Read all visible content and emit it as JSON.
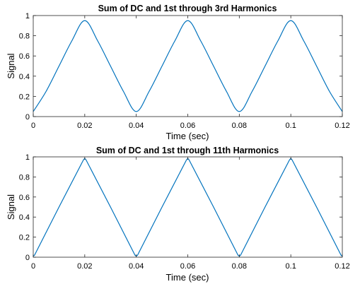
{
  "colors": {
    "line": "#0072BD",
    "axis": "#262626"
  },
  "chart_data": [
    {
      "type": "line",
      "title": "Sum of DC and 1st through 3rd Harmonics",
      "xlabel": "Time (sec)",
      "ylabel": "Signal",
      "xlim": [
        0,
        0.12
      ],
      "ylim": [
        0,
        1
      ],
      "xticks": [
        0,
        0.02,
        0.04,
        0.06,
        0.08,
        0.1,
        0.12
      ],
      "xtick_labels": [
        "0",
        "0.02",
        "0.04",
        "0.06",
        "0.08",
        "0.1",
        "0.12"
      ],
      "yticks": [
        0,
        0.2,
        0.4,
        0.6,
        0.8,
        1
      ],
      "ytick_labels": [
        "0",
        "0.2",
        "0.4",
        "0.6",
        "0.8",
        "1"
      ],
      "grid": false,
      "series": [
        {
          "x": [
            0,
            0.005,
            0.01,
            0.015,
            0.02,
            0.025,
            0.03,
            0.035,
            0.04,
            0.045,
            0.05,
            0.055,
            0.06,
            0.065,
            0.07,
            0.075,
            0.08,
            0.085,
            0.09,
            0.095,
            0.1,
            0.105,
            0.11,
            0.115,
            0.12
          ],
          "y": [
            0.05,
            0.25,
            0.5,
            0.75,
            0.95,
            0.75,
            0.5,
            0.25,
            0.05,
            0.25,
            0.5,
            0.75,
            0.95,
            0.75,
            0.5,
            0.25,
            0.05,
            0.25,
            0.5,
            0.75,
            0.95,
            0.75,
            0.5,
            0.25,
            0.05
          ],
          "smooth": true
        }
      ]
    },
    {
      "type": "line",
      "title": "Sum of DC and 1st through 11th Harmonics",
      "xlabel": "Time (sec)",
      "ylabel": "Signal",
      "xlim": [
        0,
        0.12
      ],
      "ylim": [
        0,
        1
      ],
      "xticks": [
        0,
        0.02,
        0.04,
        0.06,
        0.08,
        0.1,
        0.12
      ],
      "xtick_labels": [
        "0",
        "0.02",
        "0.04",
        "0.06",
        "0.08",
        "0.1",
        "0.12"
      ],
      "yticks": [
        0,
        0.2,
        0.4,
        0.6,
        0.8,
        1
      ],
      "ytick_labels": [
        "0",
        "0.2",
        "0.4",
        "0.6",
        "0.8",
        "1"
      ],
      "grid": false,
      "series": [
        {
          "x": [
            0,
            0.0005,
            0.01,
            0.0195,
            0.02,
            0.0205,
            0.03,
            0.0395,
            0.04,
            0.0405,
            0.05,
            0.0595,
            0.06,
            0.0605,
            0.07,
            0.0795,
            0.08,
            0.0805,
            0.09,
            0.0995,
            0.1,
            0.1005,
            0.11,
            0.1195,
            0.12
          ],
          "y": [
            0.01,
            0.02,
            0.5,
            0.97,
            0.985,
            0.97,
            0.5,
            0.02,
            0.01,
            0.02,
            0.5,
            0.97,
            0.985,
            0.97,
            0.5,
            0.02,
            0.01,
            0.02,
            0.5,
            0.97,
            0.985,
            0.97,
            0.5,
            0.02,
            0.01
          ],
          "smooth": false
        }
      ]
    }
  ]
}
